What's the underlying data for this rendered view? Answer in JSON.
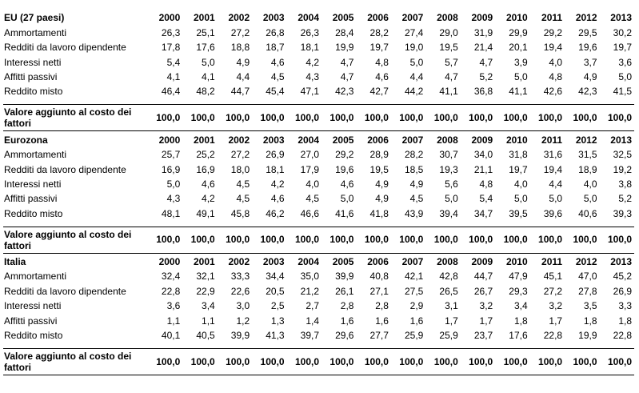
{
  "years": [
    "2000",
    "2001",
    "2002",
    "2003",
    "2004",
    "2005",
    "2006",
    "2007",
    "2008",
    "2009",
    "2010",
    "2011",
    "2012",
    "2013"
  ],
  "sections": [
    {
      "title": "EU (27 paesi)",
      "rows": [
        {
          "label": "Ammortamenti",
          "values": [
            "26,3",
            "25,1",
            "27,2",
            "26,8",
            "26,3",
            "28,4",
            "28,2",
            "27,4",
            "29,0",
            "31,9",
            "29,9",
            "29,2",
            "29,5",
            "30,2"
          ]
        },
        {
          "label": "Redditi da lavoro dipendente",
          "values": [
            "17,8",
            "17,6",
            "18,8",
            "18,7",
            "18,1",
            "19,9",
            "19,7",
            "19,0",
            "19,5",
            "21,4",
            "20,1",
            "19,4",
            "19,6",
            "19,7"
          ]
        },
        {
          "label": "Interessi netti",
          "values": [
            "5,4",
            "5,0",
            "4,9",
            "4,6",
            "4,2",
            "4,7",
            "4,8",
            "5,0",
            "5,7",
            "4,7",
            "3,9",
            "4,0",
            "3,7",
            "3,6"
          ]
        },
        {
          "label": "Affitti passivi",
          "values": [
            "4,1",
            "4,1",
            "4,4",
            "4,5",
            "4,3",
            "4,7",
            "4,6",
            "4,4",
            "4,7",
            "5,2",
            "5,0",
            "4,8",
            "4,9",
            "5,0"
          ]
        },
        {
          "label": "Reddito misto",
          "values": [
            "46,4",
            "48,2",
            "44,7",
            "45,4",
            "47,1",
            "42,3",
            "42,7",
            "44,2",
            "41,1",
            "36,8",
            "41,1",
            "42,6",
            "42,3",
            "41,5"
          ]
        }
      ],
      "total_label": "Valore aggiunto al costo dei fattori",
      "total_values": [
        "100,0",
        "100,0",
        "100,0",
        "100,0",
        "100,0",
        "100,0",
        "100,0",
        "100,0",
        "100,0",
        "100,0",
        "100,0",
        "100,0",
        "100,0",
        "100,0"
      ]
    },
    {
      "title": "Eurozona",
      "rows": [
        {
          "label": "Ammortamenti",
          "values": [
            "25,7",
            "25,2",
            "27,2",
            "26,9",
            "27,0",
            "29,2",
            "28,9",
            "28,2",
            "30,7",
            "34,0",
            "31,8",
            "31,6",
            "31,5",
            "32,5"
          ]
        },
        {
          "label": "Redditi da lavoro dipendente",
          "values": [
            "16,9",
            "16,9",
            "18,0",
            "18,1",
            "17,9",
            "19,6",
            "19,5",
            "18,5",
            "19,3",
            "21,1",
            "19,7",
            "19,4",
            "18,9",
            "19,2"
          ]
        },
        {
          "label": "Interessi netti",
          "values": [
            "5,0",
            "4,6",
            "4,5",
            "4,2",
            "4,0",
            "4,6",
            "4,9",
            "4,9",
            "5,6",
            "4,8",
            "4,0",
            "4,4",
            "4,0",
            "3,8"
          ]
        },
        {
          "label": "Affitti passivi",
          "values": [
            "4,3",
            "4,2",
            "4,5",
            "4,6",
            "4,5",
            "5,0",
            "4,9",
            "4,5",
            "5,0",
            "5,4",
            "5,0",
            "5,0",
            "5,0",
            "5,2"
          ]
        },
        {
          "label": "Reddito misto",
          "values": [
            "48,1",
            "49,1",
            "45,8",
            "46,2",
            "46,6",
            "41,6",
            "41,8",
            "43,9",
            "39,4",
            "34,7",
            "39,5",
            "39,6",
            "40,6",
            "39,3"
          ]
        }
      ],
      "total_label": "Valore aggiunto al costo dei fattori",
      "total_values": [
        "100,0",
        "100,0",
        "100,0",
        "100,0",
        "100,0",
        "100,0",
        "100,0",
        "100,0",
        "100,0",
        "100,0",
        "100,0",
        "100,0",
        "100,0",
        "100,0"
      ]
    },
    {
      "title": "Italia",
      "rows": [
        {
          "label": "Ammortamenti",
          "values": [
            "32,4",
            "32,1",
            "33,3",
            "34,4",
            "35,0",
            "39,9",
            "40,8",
            "42,1",
            "42,8",
            "44,7",
            "47,9",
            "45,1",
            "47,0",
            "45,2"
          ]
        },
        {
          "label": "Redditi da lavoro dipendente",
          "values": [
            "22,8",
            "22,9",
            "22,6",
            "20,5",
            "21,2",
            "26,1",
            "27,1",
            "27,5",
            "26,5",
            "26,7",
            "29,3",
            "27,2",
            "27,8",
            "26,9"
          ]
        },
        {
          "label": "Interessi netti",
          "values": [
            "3,6",
            "3,4",
            "3,0",
            "2,5",
            "2,7",
            "2,8",
            "2,8",
            "2,9",
            "3,1",
            "3,2",
            "3,4",
            "3,2",
            "3,5",
            "3,3"
          ]
        },
        {
          "label": "Affitti passivi",
          "values": [
            "1,1",
            "1,1",
            "1,2",
            "1,3",
            "1,4",
            "1,6",
            "1,6",
            "1,6",
            "1,7",
            "1,7",
            "1,8",
            "1,7",
            "1,8",
            "1,8"
          ]
        },
        {
          "label": "Reddito misto",
          "values": [
            "40,1",
            "40,5",
            "39,9",
            "41,3",
            "39,7",
            "29,6",
            "27,7",
            "25,9",
            "25,9",
            "23,7",
            "17,6",
            "22,8",
            "19,9",
            "22,8"
          ]
        }
      ],
      "total_label": "Valore aggiunto al costo dei fattori",
      "total_values": [
        "100,0",
        "100,0",
        "100,0",
        "100,0",
        "100,0",
        "100,0",
        "100,0",
        "100,0",
        "100,0",
        "100,0",
        "100,0",
        "100,0",
        "100,0",
        "100,0"
      ]
    }
  ]
}
